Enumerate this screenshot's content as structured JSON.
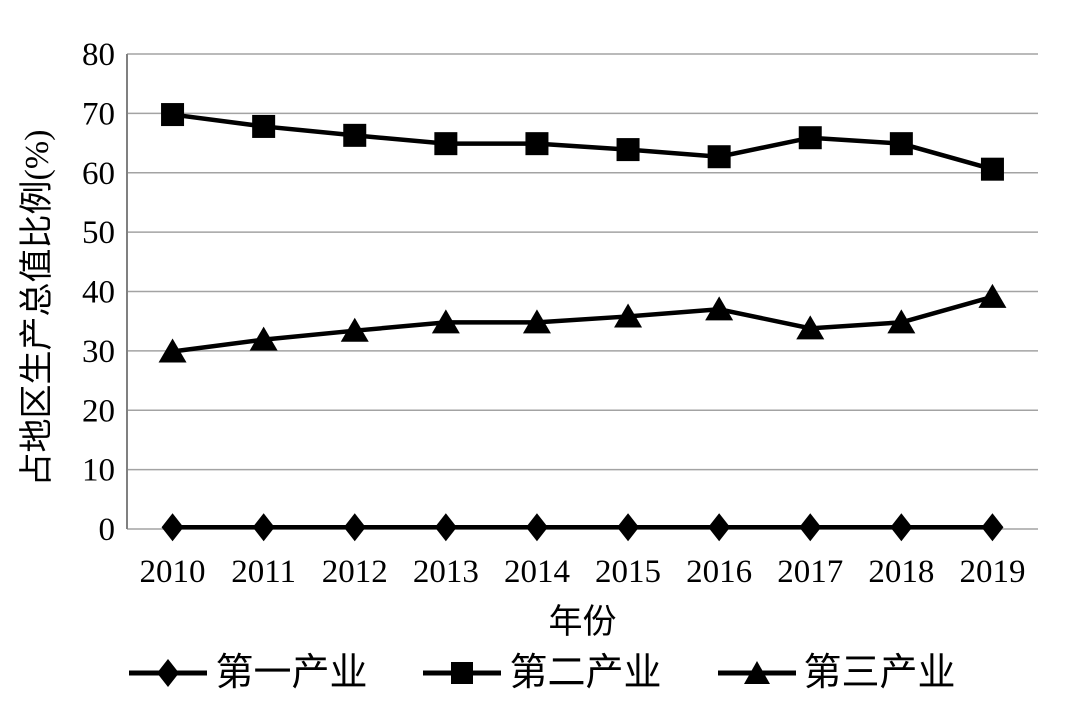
{
  "chart_data": {
    "type": "line",
    "title": "",
    "x": [
      "2010",
      "2011",
      "2012",
      "2013",
      "2014",
      "2015",
      "2016",
      "2017",
      "2018",
      "2019"
    ],
    "xlabel": "年份",
    "ylabel": "占地区生产总值比例(%)",
    "ylim": [
      0,
      80
    ],
    "yticks": [
      0,
      10,
      20,
      30,
      40,
      50,
      60,
      70,
      80
    ],
    "grid": "horizontal",
    "legend_position": "bottom",
    "series": [
      {
        "name": "第一产业",
        "marker": "diamond",
        "color": "#000000",
        "values": [
          0.3,
          0.3,
          0.3,
          0.3,
          0.3,
          0.3,
          0.3,
          0.3,
          0.3,
          0.3
        ]
      },
      {
        "name": "第二产业",
        "marker": "square",
        "color": "#000000",
        "values": [
          69.8,
          67.8,
          66.3,
          64.9,
          64.9,
          63.9,
          62.7,
          65.9,
          64.9,
          60.6
        ]
      },
      {
        "name": "第三产业",
        "marker": "triangle",
        "color": "#000000",
        "values": [
          29.9,
          31.9,
          33.4,
          34.8,
          34.8,
          35.8,
          37.0,
          33.8,
          34.8,
          39.1
        ]
      }
    ]
  },
  "colors": {
    "series": "#000000",
    "gridline": "#a3a3a3",
    "axis": "#808080",
    "background": "#ffffff",
    "text": "#000000"
  }
}
